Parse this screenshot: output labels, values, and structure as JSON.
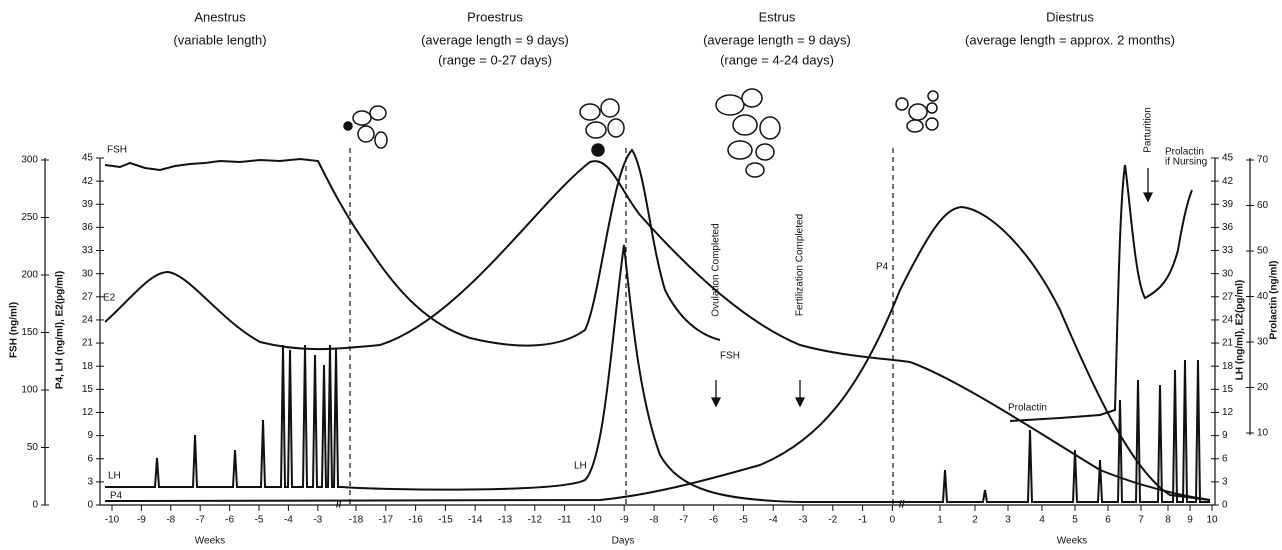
{
  "phases": [
    {
      "name": "Anestrus",
      "notes": [
        "(variable length)"
      ]
    },
    {
      "name": "Proestrus",
      "notes": [
        "(average length = 9 days)",
        "(range = 0-27 days)"
      ]
    },
    {
      "name": "Estrus",
      "notes": [
        "(average length = 9 days)",
        "(range = 4-24 days)"
      ]
    },
    {
      "name": "Diestrus",
      "notes": [
        "(average length = approx. 2 months)"
      ]
    }
  ],
  "left_axis": {
    "fsh_title": "FSH (ng/ml)",
    "fsh_ticks": [
      0,
      50,
      100,
      150,
      200,
      250,
      300
    ],
    "title": "P4, LH (ng/ml), E2(pg/ml)",
    "ticks": [
      0,
      3,
      6,
      9,
      12,
      15,
      18,
      21,
      24,
      27,
      30,
      33,
      36,
      39,
      42,
      45
    ]
  },
  "right_axis": {
    "title": "LH (ng/ml), E2(pg/ml)",
    "ticks": [
      0,
      3,
      6,
      9,
      12,
      15,
      18,
      21,
      24,
      27,
      30,
      33,
      36,
      39,
      42,
      45
    ],
    "prolactin_title": "Prolactin (ng/ml)",
    "prolactin_ticks": [
      10,
      20,
      30,
      40,
      50,
      60,
      70
    ]
  },
  "x_axis": {
    "weeks_before": [
      -10,
      -9,
      -8,
      -7,
      -6,
      -5,
      -4,
      -3
    ],
    "days": [
      -18,
      -17,
      -16,
      -15,
      -14,
      -13,
      -12,
      -11,
      -10,
      -9,
      -8,
      -7,
      -6,
      -5,
      -4,
      -3,
      -2,
      -1,
      0
    ],
    "weeks_after": [
      1,
      2,
      3,
      4,
      5,
      6,
      7,
      8,
      9,
      10
    ],
    "labels": [
      "Weeks",
      "Days",
      "Weeks"
    ]
  },
  "curve_labels": {
    "fsh": "FSH",
    "fsh_end": "FSH",
    "e2": "E2",
    "lh": "LH",
    "lh_peak": "LH",
    "p4": "P4",
    "p4_peak": "P4",
    "prolactin": "Prolactin",
    "prolactin_nursing": [
      "Prolactin",
      "if Nursing"
    ]
  },
  "annotations": {
    "ovulation": "Ovulation Completed",
    "fertilization": "Fertilization Completed",
    "parturition": "Parturition"
  }
}
